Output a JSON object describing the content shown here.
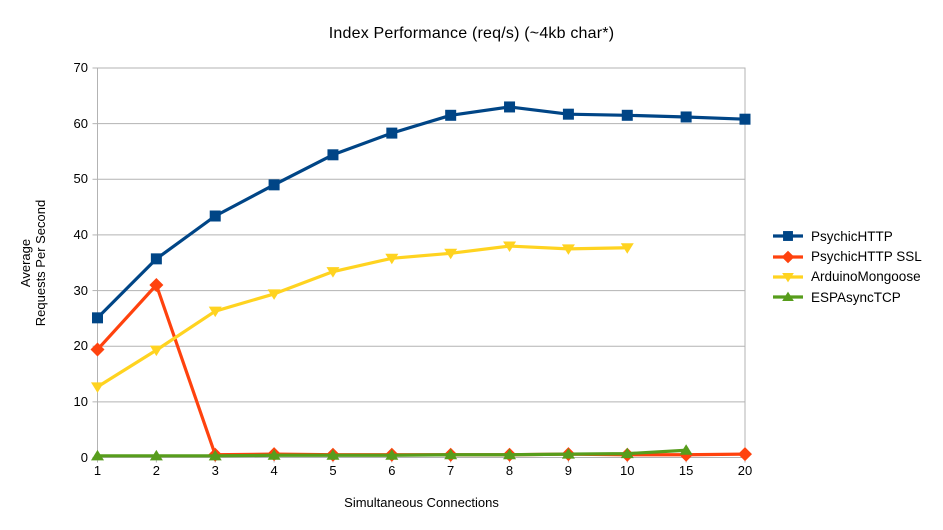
{
  "chart_data": {
    "type": "line",
    "title": "Index Performance (req/s) (~4kb char*)",
    "xlabel": "Simultaneous Connections",
    "ylabel": "Average Requests Per Second",
    "ylabel_lines": [
      "Average",
      "Requests Per Second"
    ],
    "categories": [
      "1",
      "2",
      "3",
      "4",
      "5",
      "6",
      "7",
      "8",
      "9",
      "10",
      "15",
      "20"
    ],
    "y_ticks": [
      0,
      10,
      20,
      30,
      40,
      50,
      60,
      70
    ],
    "ylim": [
      0,
      70
    ],
    "grid": "horizontal",
    "legend_position": "right",
    "axis_color": "#b3b3b3",
    "grid_color": "#b3b3b3",
    "text_color": "#000000",
    "background_color": "#ffffff",
    "series": [
      {
        "name": "PsychicHTTP",
        "color": "#004586",
        "marker": "square",
        "values": [
          25.1,
          35.7,
          43.4,
          49.0,
          54.4,
          58.3,
          61.5,
          63.0,
          61.7,
          61.5,
          61.2,
          60.8
        ]
      },
      {
        "name": "PsychicHTTP SSL",
        "color": "#FF420E",
        "marker": "diamond",
        "values": [
          19.4,
          31.0,
          0.5,
          0.6,
          0.5,
          0.5,
          0.5,
          0.5,
          0.6,
          0.5,
          0.5,
          0.6
        ]
      },
      {
        "name": "ArduinoMongoose",
        "color": "#FFD320",
        "marker": "triangle-down",
        "values": [
          12.7,
          19.3,
          26.3,
          29.4,
          33.4,
          35.8,
          36.7,
          38.0,
          37.5,
          37.7
        ]
      },
      {
        "name": "ESPAsyncTCP",
        "color": "#579D1C",
        "marker": "triangle-up",
        "values": [
          0.3,
          0.3,
          0.3,
          0.4,
          0.4,
          0.4,
          0.5,
          0.5,
          0.6,
          0.7,
          1.3
        ]
      }
    ]
  }
}
